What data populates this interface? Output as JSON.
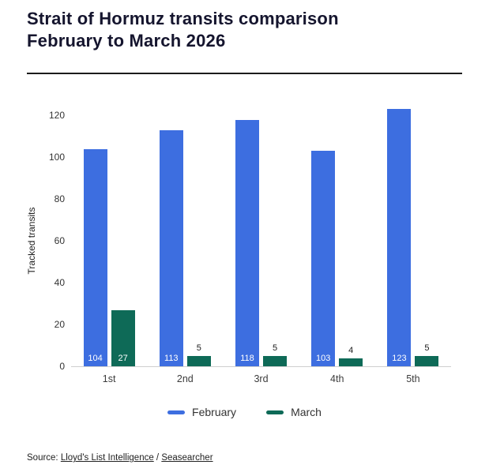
{
  "title": {
    "line1": "Strait of Hormuz transits comparison",
    "line2": "February to March 2026"
  },
  "chart_data": {
    "type": "bar",
    "title": "Strait of Hormuz transits comparison February to March 2026",
    "categories": [
      "1st",
      "2nd",
      "3rd",
      "4th",
      "5th"
    ],
    "series": [
      {
        "name": "February",
        "color": "#3d6ee0",
        "values": [
          104,
          113,
          118,
          103,
          123
        ]
      },
      {
        "name": "March",
        "color": "#0e6a57",
        "values": [
          27,
          5,
          5,
          4,
          5
        ]
      }
    ],
    "xlabel": "",
    "ylabel": "Tracked transits",
    "ylim": [
      0,
      120
    ],
    "yticks": [
      0,
      20,
      40,
      60,
      80,
      100,
      120
    ],
    "grid": false,
    "legend_position": "bottom"
  },
  "source": {
    "prefix": "Source: ",
    "link1": "Lloyd's List Intelligence",
    "separator": " / ",
    "link2": "Seasearcher"
  }
}
